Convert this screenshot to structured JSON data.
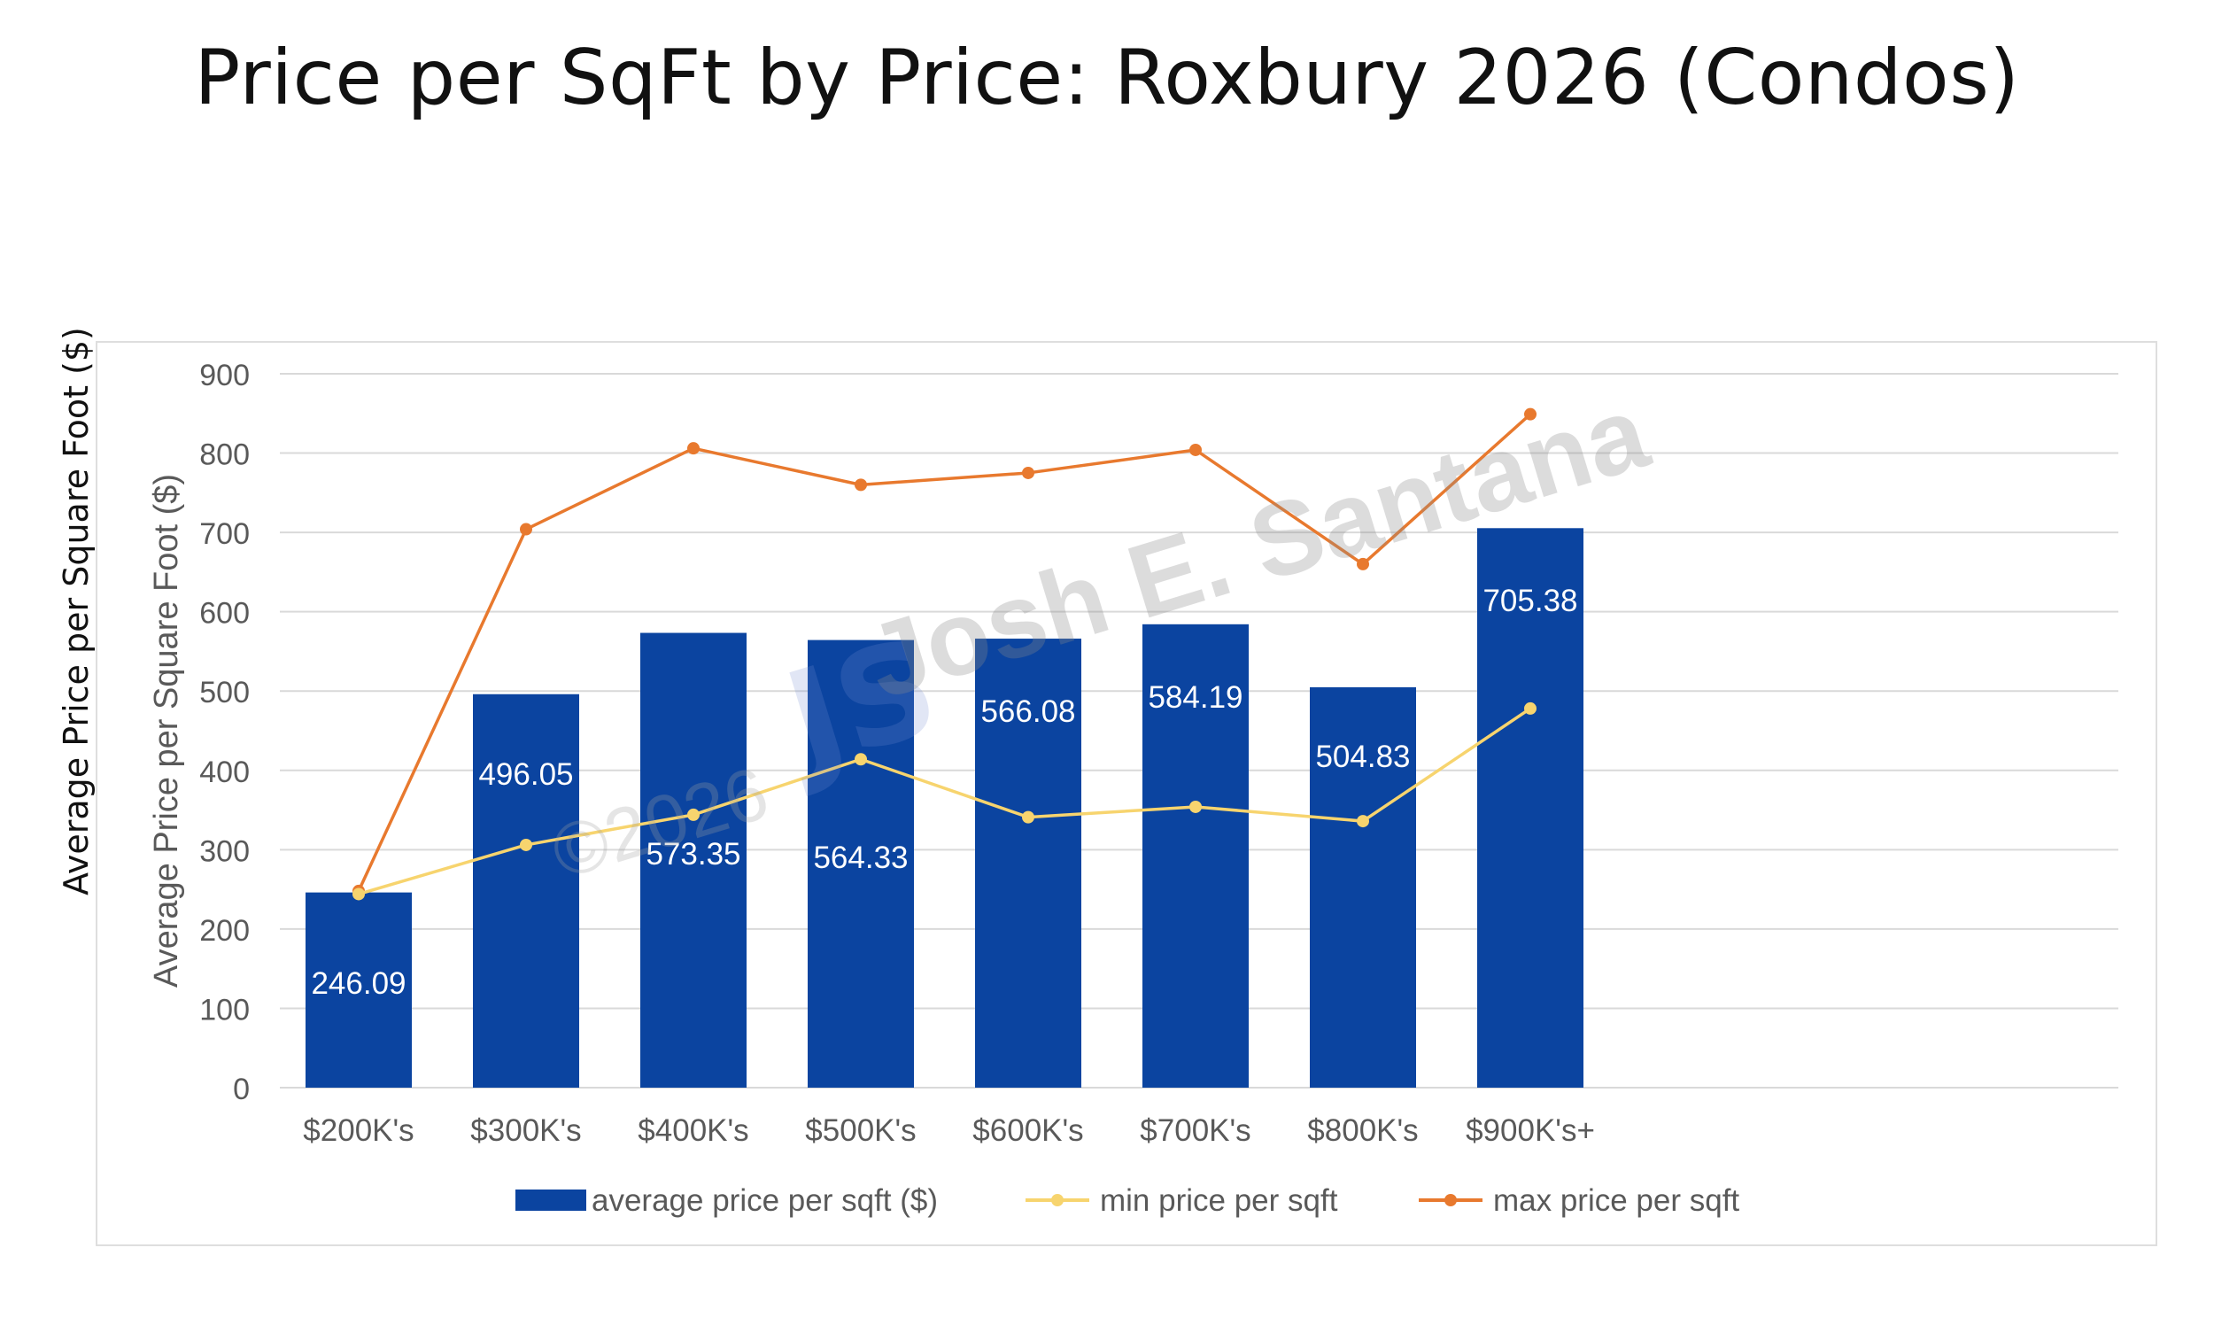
{
  "page": {
    "title": "Price per SqFt by Price: Roxbury 2026 (Condos)",
    "outer_ylabel": "Average Price per Square Foot ($)"
  },
  "watermark": {
    "text": "Josh E. Santana",
    "copyright": "©2026",
    "logo_glyph": "JS"
  },
  "colors": {
    "bar": "#0B44A0",
    "min_line": "#F7D46E",
    "max_line": "#E8792E",
    "grid": "#d9d9d9",
    "axis_text": "#595959",
    "bar_label": "#ffffff"
  },
  "chart_data": {
    "type": "bar",
    "ylabel": "Average Price per Square Foot ($)",
    "xlabel": "",
    "ylim": [
      0,
      900
    ],
    "yticks": [
      0,
      100,
      200,
      300,
      400,
      500,
      600,
      700,
      800,
      900
    ],
    "grid": true,
    "legend_position": "bottom",
    "categories": [
      "$200K's",
      "$300K's",
      "$400K's",
      "$500K's",
      "$600K's",
      "$700K's",
      "$800K's",
      "$900K's+"
    ],
    "series": [
      {
        "name": "average price per sqft ($)",
        "type": "bar",
        "color": "#0B44A0",
        "values": [
          246.09,
          496.05,
          573.35,
          564.33,
          566.08,
          584.19,
          504.83,
          705.38
        ],
        "labels": [
          "246.09",
          "496.05",
          "573.35",
          "564.33",
          "566.08",
          "584.19",
          "504.83",
          "705.38"
        ]
      },
      {
        "name": "min price per sqft",
        "type": "line",
        "color": "#F7D46E",
        "values": [
          244,
          306,
          344,
          414,
          341,
          354,
          336,
          478
        ]
      },
      {
        "name": "max price per sqft",
        "type": "line",
        "color": "#E8792E",
        "values": [
          248,
          704,
          806,
          760,
          775,
          804,
          660,
          849
        ]
      }
    ]
  }
}
